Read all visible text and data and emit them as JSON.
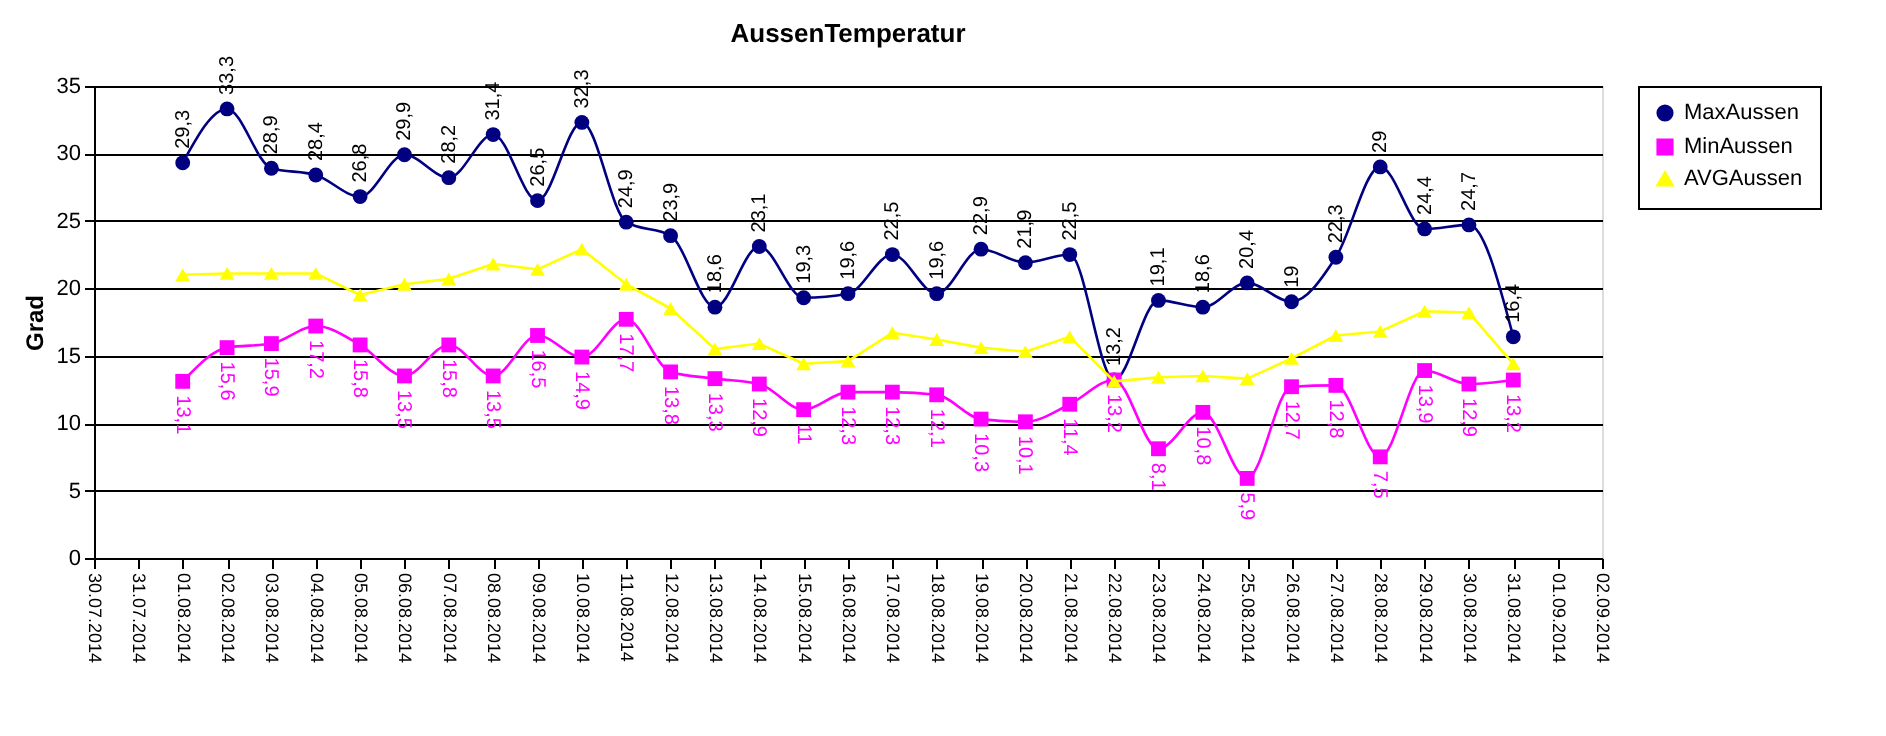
{
  "chart_data": {
    "type": "line",
    "title": "AussenTemperatur",
    "ylabel": "Grad",
    "categories": [
      "30.07.2014",
      "31.07.2014",
      "01.08.2014",
      "02.08.2014",
      "03.08.2014",
      "04.08.2014",
      "05.08.2014",
      "06.08.2014",
      "07.08.2014",
      "08.08.2014",
      "09.08.2014",
      "10.08.2014",
      "11.08.2014",
      "12.08.2014",
      "13.08.2014",
      "14.08.2014",
      "15.08.2014",
      "16.08.2014",
      "17.08.2014",
      "18.08.2014",
      "19.08.2014",
      "20.08.2014",
      "21.08.2014",
      "22.08.2014",
      "23.08.2014",
      "24.08.2014",
      "25.08.2014",
      "26.08.2014",
      "27.08.2014",
      "28.08.2014",
      "29.08.2014",
      "30.08.2014",
      "31.08.2014",
      "01.09.2014",
      "02.09.2014"
    ],
    "series": [
      {
        "name": "MaxAussen",
        "color": "#000080",
        "marker": "circle",
        "values": [
          null,
          null,
          29.3,
          33.3,
          28.9,
          28.4,
          26.8,
          29.9,
          28.2,
          31.4,
          26.5,
          32.3,
          24.9,
          23.9,
          18.6,
          23.1,
          19.3,
          19.6,
          22.5,
          19.6,
          22.9,
          21.9,
          22.5,
          13.2,
          19.1,
          18.6,
          20.4,
          19,
          22.3,
          29,
          24.4,
          24.7,
          16.4,
          null,
          null
        ],
        "value_labels": [
          null,
          null,
          "29,3",
          "33,3",
          "28,9",
          "28,4",
          "26,8",
          "29,9",
          "28,2",
          "31,4",
          "26,5",
          "32,3",
          "24,9",
          "23,9",
          "18,6",
          "23,1",
          "19,3",
          "19,6",
          "22,5",
          "19,6",
          "22,9",
          "21,9",
          "22,5",
          "13,2",
          "19,1",
          "18,6",
          "20,4",
          "19",
          "22,3",
          "29",
          "24,4",
          "24,7",
          "16,4",
          null,
          null
        ]
      },
      {
        "name": "MinAussen",
        "color": "#ff00ff",
        "marker": "square",
        "values": [
          null,
          null,
          13.1,
          15.6,
          15.9,
          17.2,
          15.8,
          13.5,
          15.8,
          13.5,
          16.5,
          14.9,
          17.7,
          13.8,
          13.3,
          12.9,
          11,
          12.3,
          12.3,
          12.1,
          10.3,
          10.1,
          11.4,
          13.2,
          8.1,
          10.8,
          5.9,
          12.7,
          12.8,
          7.5,
          13.9,
          12.9,
          13.2,
          null,
          null
        ],
        "value_labels": [
          null,
          null,
          "13,1",
          "15,6",
          "15,9",
          "17,2",
          "15,8",
          "13,5",
          "15,8",
          "13,5",
          "16,5",
          "14,9",
          "17,7",
          "13,8",
          "13,3",
          "12,9",
          "11",
          "12,3",
          "12,3",
          "12,1",
          "10,3",
          "10,1",
          "11,4",
          "13,2",
          "8,1",
          "10,8",
          "5,9",
          "12,7",
          "12,8",
          "7,5",
          "13,9",
          "12,9",
          "13,2",
          null,
          null
        ]
      },
      {
        "name": "AVGAussen",
        "color": "#ffff00",
        "marker": "triangle",
        "values": [
          null,
          null,
          21.0,
          21.1,
          21.1,
          21.1,
          19.5,
          20.3,
          20.7,
          21.8,
          21.4,
          22.9,
          20.3,
          18.5,
          15.5,
          15.9,
          14.4,
          14.6,
          16.7,
          16.2,
          15.6,
          15.3,
          16.4,
          13.1,
          13.4,
          13.5,
          13.3,
          14.8,
          16.5,
          16.8,
          18.3,
          18.2,
          14.4,
          null,
          null
        ]
      }
    ],
    "ylim": [
      0,
      35
    ],
    "yticks": [
      0,
      5,
      10,
      15,
      20,
      25,
      30,
      35
    ],
    "grid": "y",
    "legend": "right",
    "line_style": "solid"
  }
}
